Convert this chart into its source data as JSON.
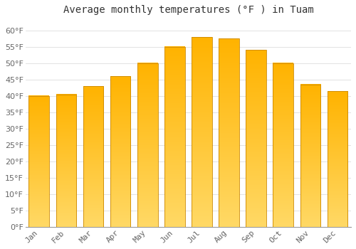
{
  "title": "Average monthly temperatures (°F ) in Tuam",
  "months": [
    "Jan",
    "Feb",
    "Mar",
    "Apr",
    "May",
    "Jun",
    "Jul",
    "Aug",
    "Sep",
    "Oct",
    "Nov",
    "Dec"
  ],
  "values": [
    40,
    40.5,
    43,
    46,
    50,
    55,
    58,
    57.5,
    54,
    50,
    43.5,
    41.5
  ],
  "bar_color_top": "#FFB300",
  "bar_color_bottom": "#FFD966",
  "bar_edge_color": "#CC8800",
  "background_color": "#FFFFFF",
  "grid_color": "#DDDDDD",
  "ylim": [
    0,
    63
  ],
  "yticks": [
    0,
    5,
    10,
    15,
    20,
    25,
    30,
    35,
    40,
    45,
    50,
    55,
    60
  ],
  "title_fontsize": 10,
  "tick_fontsize": 8,
  "tick_color": "#666666",
  "title_color": "#333333"
}
